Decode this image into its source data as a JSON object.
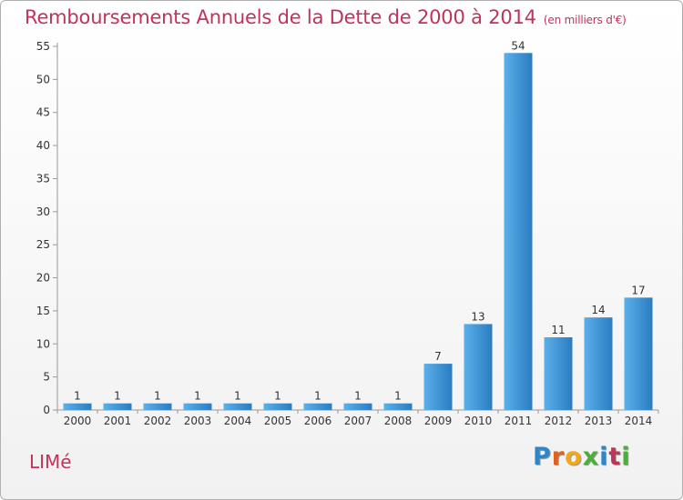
{
  "header": {
    "title": "Remboursements Annuels de la Dette de 2000 à 2014",
    "unit": "(en milliers d'€)"
  },
  "footer": {
    "commune": "LIMé",
    "brand_letters": [
      "P",
      "r",
      "o",
      "x",
      "i",
      "t",
      "i"
    ],
    "brand_colors": [
      "#2e86c9",
      "#e0601c",
      "#f2a81e",
      "#4caf3a",
      "#2e86c9",
      "#c0335a",
      "#4caf3a"
    ]
  },
  "chart_data": {
    "type": "bar",
    "title": "Remboursements Annuels de la Dette de 2000 à 2014",
    "xlabel": "",
    "ylabel": "",
    "categories": [
      "2000",
      "2001",
      "2002",
      "2003",
      "2004",
      "2005",
      "2006",
      "2007",
      "2008",
      "2009",
      "2010",
      "2011",
      "2012",
      "2013",
      "2014"
    ],
    "values": [
      1,
      1,
      1,
      1,
      1,
      1,
      1,
      1,
      1,
      7,
      13,
      54,
      11,
      14,
      17
    ],
    "ylim": [
      0,
      55
    ],
    "yticks": [
      0,
      5,
      10,
      15,
      20,
      25,
      30,
      35,
      40,
      45,
      50,
      55
    ],
    "grid": false,
    "bar_color_light": "#5cb0ea",
    "bar_color_dark": "#2a7cc0",
    "axis_color": "#999999",
    "text_color": "#333333"
  }
}
